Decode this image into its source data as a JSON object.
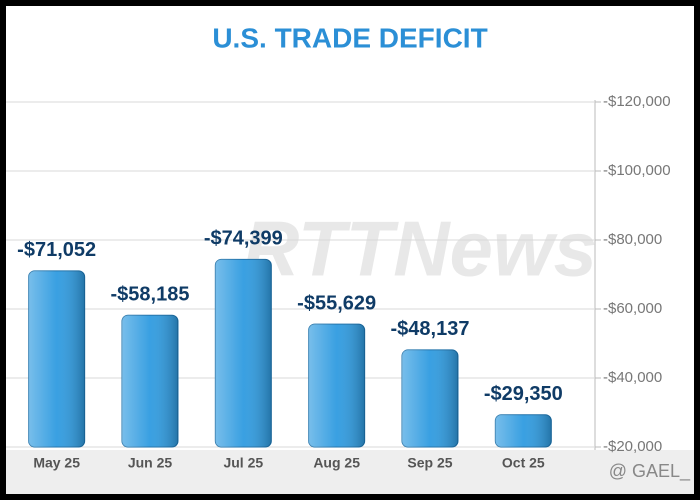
{
  "chart_data": {
    "type": "bar",
    "title": "U.S. TRADE DEFICIT",
    "categories": [
      "May 25",
      "Jun 25",
      "Jul 25",
      "Aug 25",
      "Sep 25",
      "Oct 25"
    ],
    "values": [
      -71052,
      -58185,
      -74399,
      -55629,
      -48137,
      -29350
    ],
    "value_labels": [
      "-$71,052",
      "-$58,185",
      "-$74,399",
      "-$55,629",
      "-$48,137",
      "-$29,350"
    ],
    "color": "#2f9be0",
    "ylim": [
      -20000,
      -120000
    ],
    "yticks": [
      {
        "value": -20000,
        "label": "-$20,000"
      },
      {
        "value": -40000,
        "label": "-$40,000"
      },
      {
        "value": -60000,
        "label": "-$60,000"
      },
      {
        "value": -80000,
        "label": "-$80,000"
      },
      {
        "value": -100000,
        "label": "-$100,000"
      },
      {
        "value": -120000,
        "label": "-$120,000"
      }
    ],
    "grid": true,
    "watermark": "RTTNews",
    "credit": "@ GAEL_"
  }
}
